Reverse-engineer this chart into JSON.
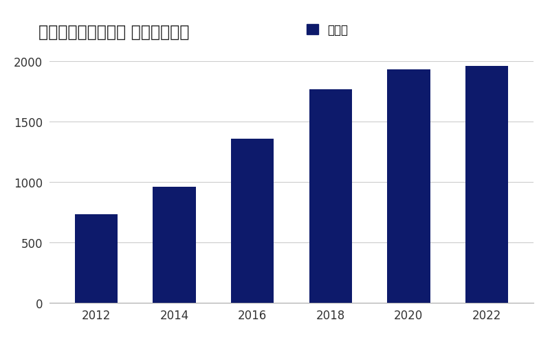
{
  "title": "＜ハローストレージ 物件数推移＞",
  "legend_label": "物件数",
  "categories": [
    2012,
    2014,
    2016,
    2018,
    2020,
    2022
  ],
  "values": [
    730,
    960,
    1360,
    1770,
    1935,
    1960
  ],
  "bar_color": "#0d1a6b",
  "background_color": "#ffffff",
  "grid_color": "#cccccc",
  "ylim": [
    0,
    2000
  ],
  "yticks": [
    0,
    500,
    1000,
    1500,
    2000
  ],
  "title_fontsize": 17,
  "tick_fontsize": 12,
  "legend_fontsize": 12
}
